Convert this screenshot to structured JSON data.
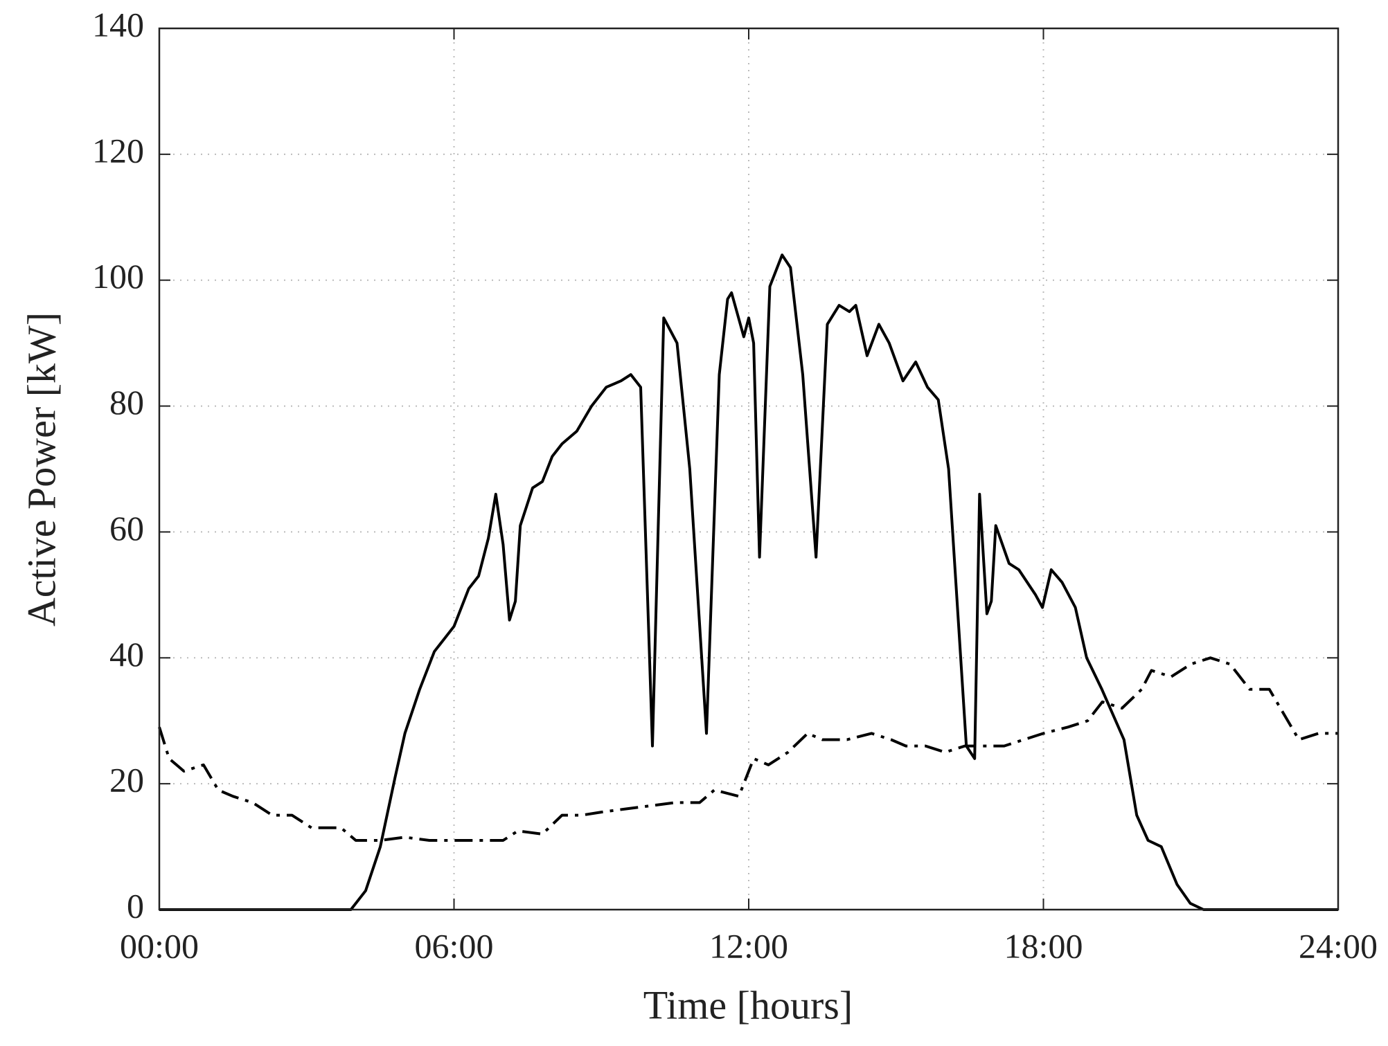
{
  "chart_data": {
    "type": "line",
    "xlabel": "Time [hours]",
    "ylabel": "Active Power [kW]",
    "xlim": [
      0,
      24
    ],
    "xticks": [
      {
        "value": 0,
        "label": "00:00"
      },
      {
        "value": 6,
        "label": "06:00"
      },
      {
        "value": 12,
        "label": "12:00"
      },
      {
        "value": 18,
        "label": "18:00"
      },
      {
        "value": 24,
        "label": "24:00"
      }
    ],
    "ylim": [
      0,
      140
    ],
    "yticks": [
      0,
      20,
      40,
      60,
      80,
      100,
      120,
      140
    ],
    "grid": true,
    "series": [
      {
        "color": "#000000",
        "style": "solid",
        "x": [
          0,
          3.9,
          4.2,
          4.5,
          4.8,
          5.0,
          5.3,
          5.6,
          6.0,
          6.3,
          6.5,
          6.7,
          6.85,
          7.0,
          7.13,
          7.25,
          7.35,
          7.6,
          7.8,
          8.0,
          8.2,
          8.5,
          8.8,
          9.1,
          9.4,
          9.6,
          9.8,
          10.04,
          10.27,
          10.54,
          10.8,
          11.14,
          11.4,
          11.57,
          11.65,
          11.9,
          12.0,
          12.1,
          12.22,
          12.43,
          12.68,
          12.85,
          13.1,
          13.37,
          13.6,
          13.84,
          14.05,
          14.18,
          14.41,
          14.65,
          14.86,
          15.14,
          15.4,
          15.64,
          15.86,
          16.07,
          16.43,
          16.6,
          16.7,
          16.85,
          16.94,
          17.03,
          17.3,
          17.5,
          17.84,
          17.98,
          18.16,
          18.38,
          18.65,
          18.88,
          19.19,
          19.64,
          19.9,
          20.13,
          20.4,
          20.72,
          20.99,
          21.26,
          24
        ],
        "values": [
          0,
          0,
          3,
          10,
          21,
          28,
          35,
          41,
          45,
          51,
          53,
          59,
          66,
          58,
          46,
          49,
          61,
          67,
          68,
          72,
          74,
          76,
          80,
          83,
          84,
          85,
          83,
          26,
          94,
          90,
          70,
          28,
          85,
          97,
          98,
          91,
          94,
          90,
          56,
          99,
          104,
          102,
          85,
          56,
          93,
          96,
          95,
          96,
          88,
          93,
          90,
          84,
          87,
          83,
          81,
          70,
          26,
          24,
          66,
          47,
          49,
          61,
          55,
          54,
          50,
          48,
          54,
          52,
          48,
          40,
          35,
          27,
          15,
          11,
          10,
          4,
          1,
          0,
          0
        ]
      },
      {
        "color": "#000000",
        "style": "dashdot",
        "x": [
          0,
          0.2,
          0.5,
          0.9,
          1.2,
          1.5,
          1.9,
          2.3,
          2.7,
          3.1,
          3.4,
          3.7,
          4.0,
          4.5,
          5.0,
          5.5,
          6.0,
          6.5,
          7.0,
          7.3,
          7.8,
          8.2,
          8.6,
          9.0,
          9.5,
          10.0,
          10.5,
          11.0,
          11.3,
          11.8,
          12.1,
          12.4,
          12.8,
          13.2,
          13.5,
          14.0,
          14.5,
          14.9,
          15.2,
          15.6,
          16.0,
          16.4,
          16.8,
          17.2,
          17.6,
          18.0,
          18.5,
          18.9,
          19.2,
          19.6,
          20.0,
          20.2,
          20.6,
          21.0,
          21.4,
          21.8,
          22.2,
          22.6,
          22.9,
          23.2,
          23.6,
          24.0
        ],
        "values": [
          29,
          24,
          22,
          23,
          19,
          18,
          17,
          15,
          15,
          13,
          13,
          13,
          11,
          11,
          11.5,
          11,
          11,
          11,
          11,
          12.5,
          12,
          15,
          15,
          15.5,
          16,
          16.5,
          17,
          17,
          19,
          18,
          24,
          23,
          25,
          28,
          27,
          27,
          28,
          27,
          26,
          26,
          25,
          26,
          26,
          26,
          27,
          28,
          29,
          30,
          33,
          32,
          35,
          38,
          37,
          39,
          40,
          39,
          35,
          35,
          31,
          27,
          28,
          28
        ]
      }
    ]
  }
}
